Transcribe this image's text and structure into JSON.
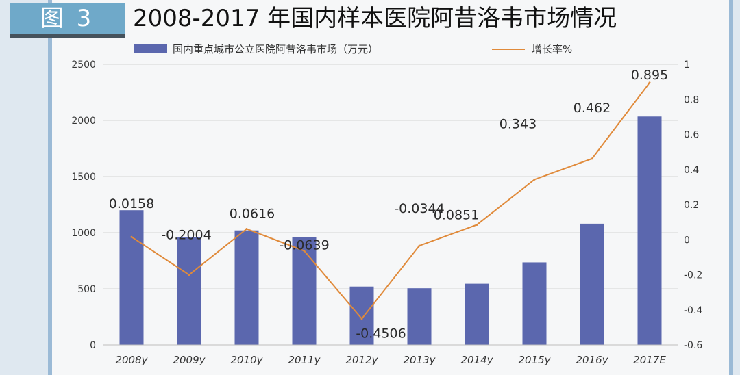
{
  "figure_label": "图 3",
  "chart_data": {
    "type": "bar",
    "title": "2008-2017 年国内样本医院阿昔洛韦市场情况",
    "categories": [
      "2008y",
      "2009y",
      "2010y",
      "2011y",
      "2012y",
      "2013y",
      "2014y",
      "2015y",
      "2016y",
      "2017E"
    ],
    "series": [
      {
        "name": "国内重点城市公立医院阿昔洛韦市场（万元）",
        "type": "bar",
        "axis": "left",
        "color": "#5b67ae",
        "values": [
          1200,
          960,
          1020,
          960,
          520,
          505,
          545,
          735,
          1080,
          2035
        ]
      },
      {
        "name": "增长率%",
        "type": "line",
        "axis": "right",
        "color": "#e08a3a",
        "values": [
          0.0158,
          -0.2004,
          0.0616,
          -0.0639,
          -0.4506,
          -0.0344,
          0.0851,
          0.343,
          0.462,
          0.895
        ],
        "labels": [
          "0.0158",
          "-0.2004",
          "0.0616",
          "-0.0639",
          "-0.4506",
          "-0.0344",
          "0.0851",
          "0.343",
          "0.462",
          "0.895"
        ]
      }
    ],
    "y_left": {
      "min": 0,
      "max": 2500,
      "ticks": [
        "0",
        "500",
        "1000",
        "1500",
        "2000",
        "2500"
      ]
    },
    "y_right": {
      "min": -0.6,
      "max": 1,
      "ticks": [
        "-0.6",
        "-0.4",
        "-0.2",
        "0",
        "0.2",
        "0.4",
        "0.6",
        "0.8",
        "1"
      ]
    },
    "grid": true,
    "legend_position": "top"
  }
}
